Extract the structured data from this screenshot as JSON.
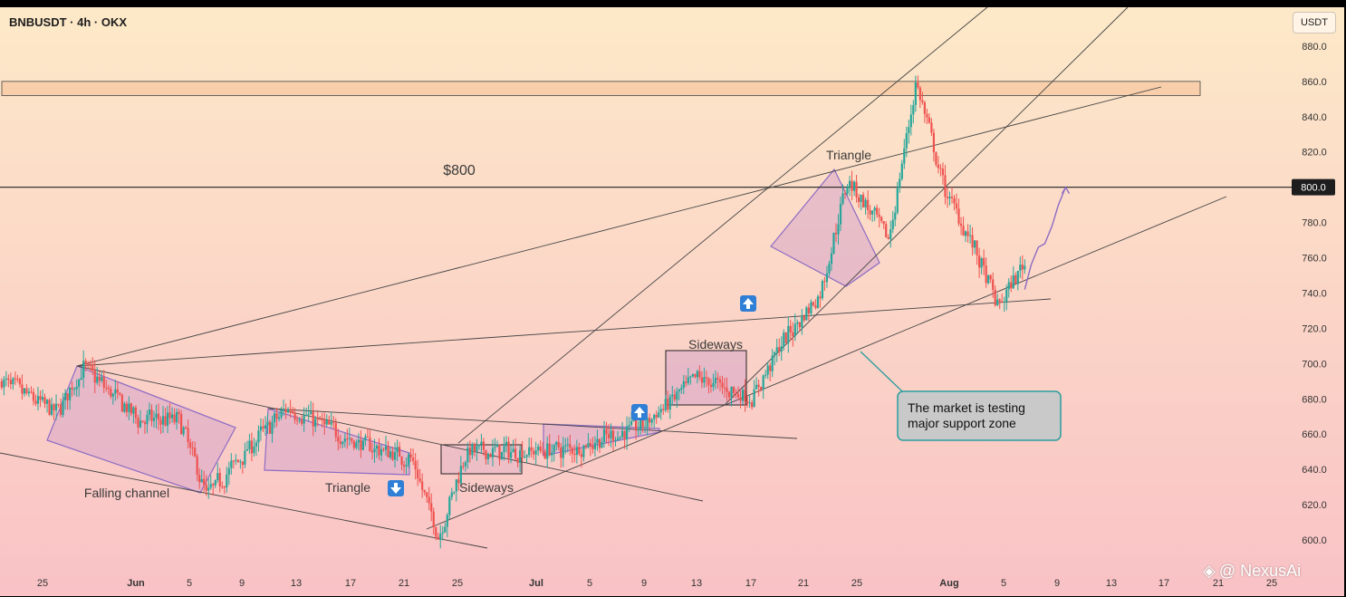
{
  "header": {
    "symbol": "BNBUSDT · 4h · OKX"
  },
  "price_axis": {
    "unit_label": "USDT",
    "current_price_label": "800.0"
  },
  "watermark": {
    "icon": "binance-diamond-icon",
    "text": "@ NexusAi"
  },
  "colors": {
    "background_top": "#fde9c8",
    "background_bottom": "#f9c2c6",
    "candle_up": "#26a69a",
    "candle_down": "#ef5350",
    "pattern_fill": "#d7a6c8",
    "pattern_stroke": "#8e6cc4",
    "resistance_fill": "#f7c8a0",
    "callout_fill": "#c9c9c9",
    "callout_stroke": "#2a9d9d",
    "price_tag": "#1d1d1d"
  },
  "chart_data": {
    "type": "candlestick",
    "title": "BNBUSDT · 4h · OKX",
    "y_axis": {
      "unit": "USDT",
      "range": [
        590,
        890
      ],
      "ticks": [
        "880.0",
        "860.0",
        "840.0",
        "820.0",
        "800.0",
        "780.0",
        "760.0",
        "740.0",
        "720.0",
        "700.0",
        "680.0",
        "660.0",
        "640.0",
        "620.0",
        "600.0"
      ]
    },
    "x_axis": {
      "ticks": [
        "25",
        "Jun",
        "5",
        "9",
        "13",
        "17",
        "21",
        "25",
        "Jul",
        "5",
        "9",
        "13",
        "17",
        "21",
        "25",
        "Aug",
        "5",
        "9",
        "13",
        "17",
        "21",
        "25"
      ]
    },
    "series": [
      {
        "name": "BNBUSDT",
        "type": "ohlc-path",
        "x": [
          "May 22",
          "May 26",
          "May 28",
          "Jun 1",
          "Jun 4",
          "Jun 6",
          "Jun 10",
          "Jun 12",
          "Jun 17",
          "Jun 21",
          "Jun 23",
          "Jun 25",
          "Jun 29",
          "Jul 3",
          "Jul 8",
          "Jul 12",
          "Jul 16",
          "Jul 18",
          "Jul 21",
          "Jul 23",
          "Jul 26",
          "Jul 28",
          "Jul 30",
          "Aug 1",
          "Aug 3",
          "Aug 5"
        ],
        "values": [
          690,
          672,
          698,
          668,
          668,
          625,
          660,
          675,
          655,
          646,
          602,
          650,
          650,
          652,
          665,
          692,
          680,
          710,
          740,
          805,
          770,
          860,
          800,
          770,
          732,
          758
        ]
      }
    ],
    "projection": {
      "x": [
        "Aug 5",
        "Aug 6",
        "Aug 7",
        "Aug 8"
      ],
      "values": [
        742,
        766,
        778,
        800
      ]
    },
    "levels": [
      {
        "label": "$800",
        "price": 800
      },
      {
        "label": "",
        "price_range": [
          852,
          860
        ]
      }
    ],
    "patterns": [
      {
        "label": "Falling channel"
      },
      {
        "label": "Triangle",
        "breakout": "down"
      },
      {
        "label": "Sideways"
      },
      {
        "label": "",
        "breakout": "up"
      },
      {
        "label": "Sideways",
        "breakout": "up"
      },
      {
        "label": "Triangle"
      }
    ],
    "annotation": "The market is testing major support zone"
  }
}
